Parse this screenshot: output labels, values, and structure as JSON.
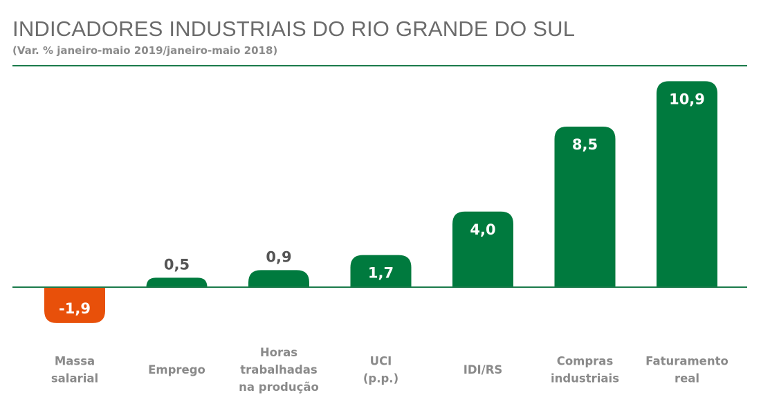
{
  "title": "INDICADORES INDUSTRIAIS DO RIO GRANDE DO SUL",
  "subtitle": "(Var. % janeiro-maio 2019/janeiro-maio 2018)",
  "colors": {
    "positive": "#007a3e",
    "negative": "#e8500a",
    "baseline": "#1a7a4a",
    "label_inside": "#ffffff",
    "label_outside": "#555555",
    "category": "#8a8a8a"
  },
  "chart_data": {
    "type": "bar",
    "title": "INDICADORES INDUSTRIAIS DO RIO GRANDE DO SUL",
    "subtitle": "(Var. % janeiro-maio 2019/janeiro-maio 2018)",
    "categories": [
      [
        "Massa",
        "salarial"
      ],
      [
        "Emprego"
      ],
      [
        "Horas",
        "trabalhadas",
        "na produção"
      ],
      [
        "UCI",
        "(p.p.)"
      ],
      [
        "IDI/RS"
      ],
      [
        "Compras",
        "industriais"
      ],
      [
        "Faturamento",
        "real"
      ]
    ],
    "values": [
      -1.9,
      0.5,
      0.9,
      1.7,
      4.0,
      8.5,
      10.9
    ],
    "value_labels": [
      "-1,9",
      "0,5",
      "0,9",
      "1,7",
      "4,0",
      "8,5",
      "10,9"
    ],
    "ylim": [
      -1.9,
      10.9
    ],
    "grid": false,
    "legend": "none"
  }
}
